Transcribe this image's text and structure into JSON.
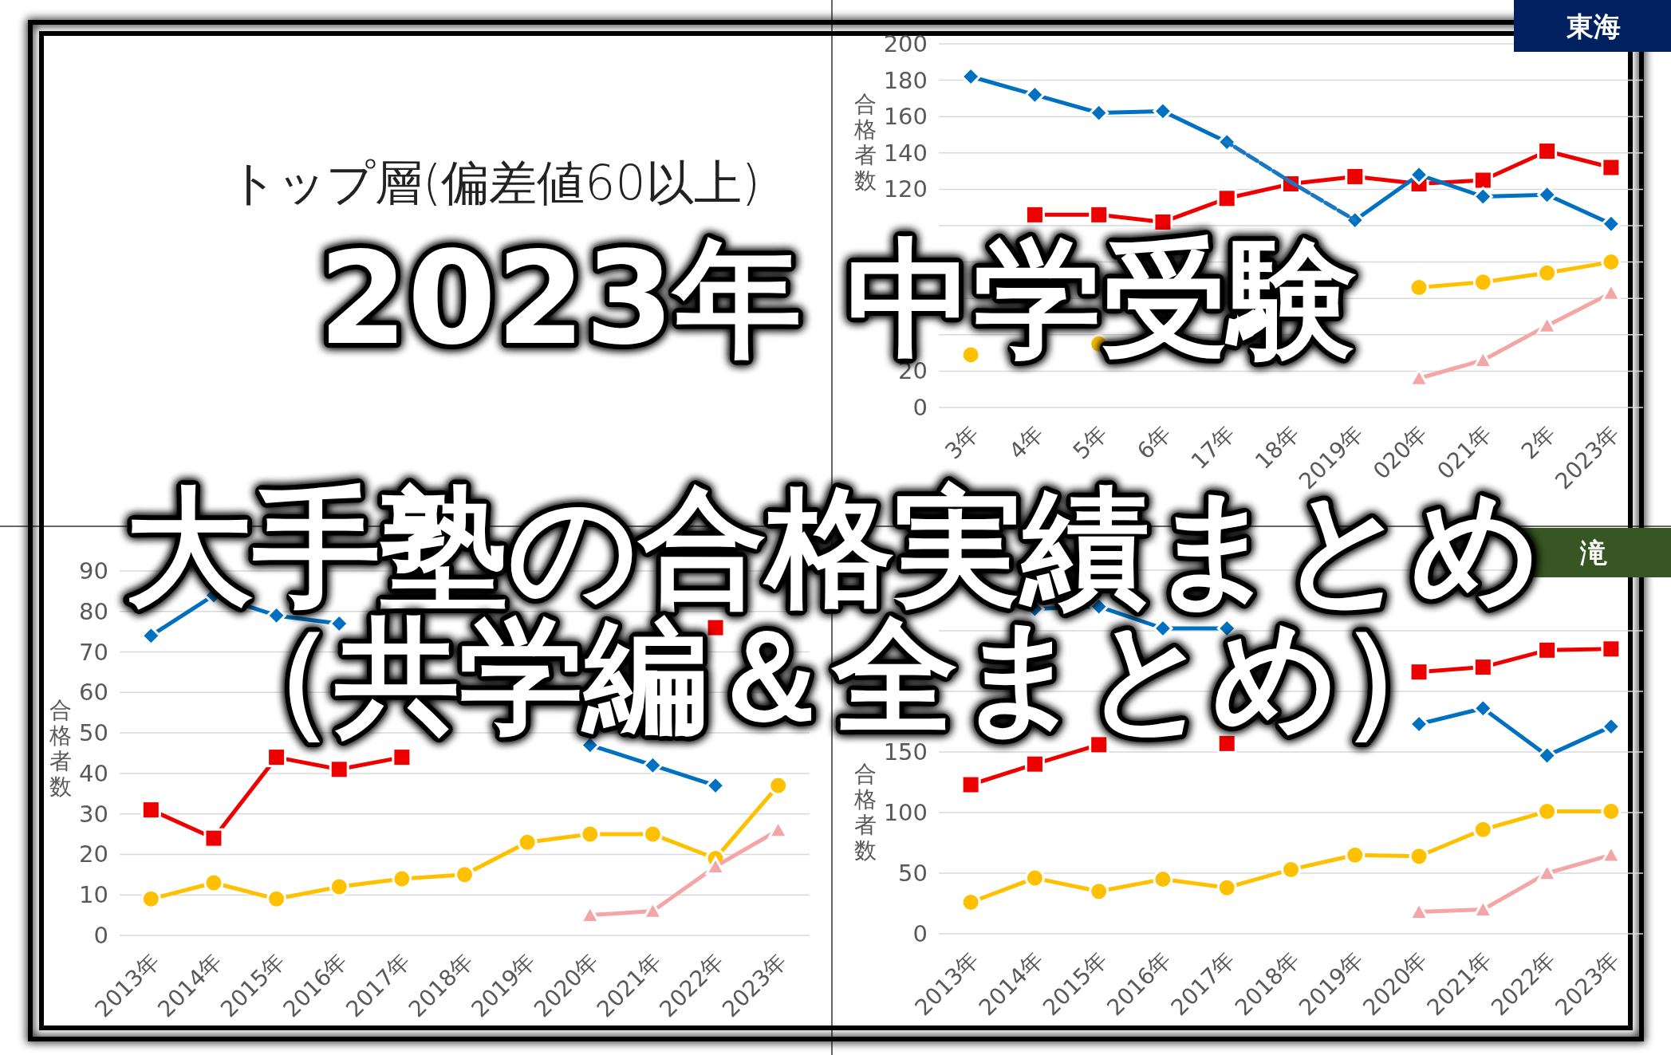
{
  "chart_data": [
    {
      "type": "other",
      "annotations": [
        "トップ層(偏差値60以上)"
      ]
    },
    {
      "type": "line",
      "title": "東海",
      "ylabel": "合格者数",
      "categories": [
        "3年",
        "4年",
        "5年",
        "6年",
        "17年",
        "18年",
        "2019年",
        "020年",
        "021年",
        "2年",
        "2023年"
      ],
      "ylim": [
        0,
        200
      ],
      "yticks": [
        0,
        20,
        {
          "value": 40,
          "label": null
        },
        {
          "value": 60,
          "label": null
        },
        {
          "value": 80,
          "label": null
        },
        {
          "value": 100,
          "label": null
        },
        120,
        140,
        160,
        180,
        200
      ],
      "grid": "y",
      "series": [
        {
          "color": "#ee0000",
          "marker": "square",
          "values": [
            null,
            106,
            106,
            102,
            115,
            123,
            127,
            123,
            125,
            141,
            132
          ]
        },
        {
          "color": "#0070c0",
          "marker": "diamond",
          "values": [
            182,
            172,
            162,
            163,
            146,
            null,
            103,
            128,
            116,
            117,
            101
          ]
        },
        {
          "color": "#ffc000",
          "marker": "circle",
          "values": [
            29,
            null,
            35,
            null,
            null,
            null,
            null,
            66,
            69,
            74,
            80
          ]
        },
        {
          "color": "#f4a6a6",
          "marker": "triangle",
          "values": [
            null,
            null,
            null,
            null,
            null,
            null,
            null,
            16,
            26,
            45,
            63
          ]
        },
        {
          "color": "#1a78c2",
          "marker": "none",
          "line_style": "dashed",
          "values": [
            null,
            null,
            null,
            null,
            146,
            124,
            103,
            null,
            null,
            null,
            null
          ]
        }
      ]
    },
    {
      "type": "line",
      "ylabel": "合格者数",
      "categories": [
        "2013年",
        "2014年",
        "2015年",
        "2016年",
        "2017年",
        "2018年",
        "2019年",
        "2020年",
        "2021年",
        "2022年",
        "2023年"
      ],
      "ylim": [
        0,
        90
      ],
      "yticks": [
        0,
        10,
        20,
        30,
        40,
        50,
        60,
        70,
        80,
        90
      ],
      "grid": "y",
      "series": [
        {
          "color": "#0070c0",
          "marker": "diamond",
          "values": [
            74,
            84,
            79,
            77,
            null,
            null,
            null,
            47,
            42,
            37,
            null
          ]
        },
        {
          "color": "#ee0000",
          "marker": "square",
          "values": [
            31,
            24,
            44,
            41,
            44,
            null,
            null,
            null,
            null,
            76,
            null
          ]
        },
        {
          "color": "#ffc000",
          "marker": "circle",
          "values": [
            9,
            13,
            9,
            12,
            14,
            15,
            23,
            25,
            25,
            19,
            37
          ]
        },
        {
          "color": "#f4a6a6",
          "marker": "triangle",
          "values": [
            null,
            null,
            null,
            null,
            null,
            null,
            null,
            5,
            6,
            17,
            26
          ]
        }
      ]
    },
    {
      "type": "line",
      "title": "滝",
      "ylabel": "合格者数",
      "categories": [
        "2013年",
        "2014年",
        "2015年",
        "2016年",
        "2017年",
        "2018年",
        "2019年",
        "2020年",
        "2021年",
        "2022年",
        "2023年"
      ],
      "ylim": [
        0,
        300
      ],
      "yticks": [
        0,
        50,
        100,
        150,
        {
          "value": 200,
          "label": null
        },
        {
          "value": 250,
          "label": null
        },
        {
          "value": 300,
          "label": null
        }
      ],
      "grid": "y",
      "series": [
        {
          "color": "#0070c0",
          "marker": "diamond",
          "values": [
            null,
            268,
            270,
            252,
            252,
            null,
            null,
            173,
            186,
            147,
            171
          ]
        },
        {
          "color": "#ee0000",
          "marker": "square",
          "values": [
            123,
            140,
            156,
            null,
            157,
            null,
            null,
            216,
            220,
            234,
            235
          ]
        },
        {
          "color": "#ffc000",
          "marker": "circle",
          "values": [
            26,
            46,
            35,
            45,
            38,
            53,
            65,
            64,
            86,
            101,
            101
          ]
        },
        {
          "color": "#f4a6a6",
          "marker": "triangle",
          "values": [
            null,
            null,
            null,
            null,
            null,
            null,
            null,
            18,
            20,
            50,
            65
          ]
        }
      ]
    },
    {
      "type": "other",
      "annotations": [
        "2023年 中学受験",
        "大手塾の合格実績まとめ",
        "（共学編＆全まとめ）"
      ]
    }
  ]
}
